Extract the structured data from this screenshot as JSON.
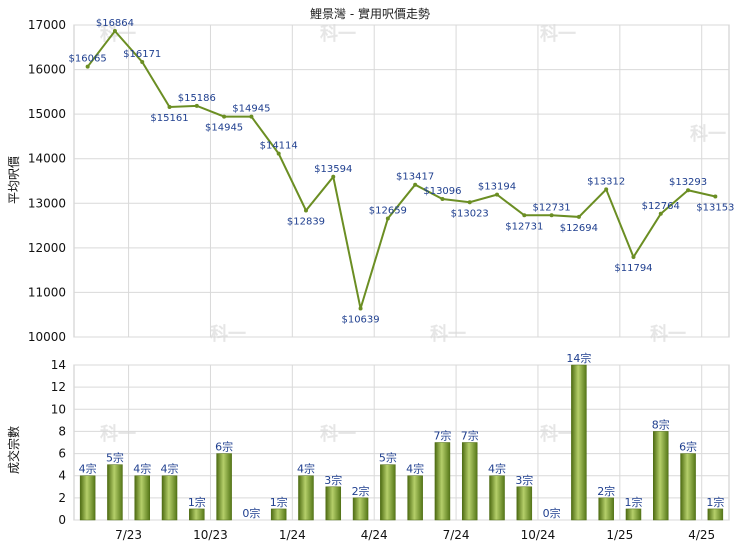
{
  "chart_data": [
    {
      "type": "line",
      "title": "鯉景灣 - 實用呎價走勢",
      "ylabel": "平均呎價",
      "ylim": [
        10000,
        17000
      ],
      "yticks": [
        10000,
        11000,
        12000,
        13000,
        14000,
        15000,
        16000,
        17000
      ],
      "xticks": [
        "7/23",
        "10/23",
        "1/24",
        "4/24",
        "7/24",
        "10/24",
        "1/25",
        "4/25"
      ],
      "grid": true,
      "color": "#6b8e23",
      "series": [
        {
          "values": [
            16065,
            16864,
            16171,
            15161,
            15186,
            14945,
            14945,
            14114,
            12839,
            13594,
            10639,
            12659,
            13417,
            13096,
            13023,
            13194,
            12731,
            12731,
            12694,
            13312,
            11794,
            12764,
            13293,
            13153
          ],
          "labels": [
            "$16065",
            "$16864",
            "$16171",
            "$15161",
            "$15186",
            "$14945",
            "$14945",
            "$14114",
            "$12839",
            "$13594",
            "$10639",
            "$12659",
            "$13417",
            "$13096",
            "$13023",
            "$13194",
            "$12731",
            "$12731",
            "$12694",
            "$13312",
            "$11794",
            "$12764",
            "$13293",
            "$13153"
          ]
        }
      ]
    },
    {
      "type": "bar",
      "ylabel": "成交宗數",
      "ylim": [
        0,
        14
      ],
      "yticks": [
        0,
        2,
        4,
        6,
        8,
        10,
        12,
        14
      ],
      "xticks": [
        "7/23",
        "10/23",
        "1/24",
        "4/24",
        "7/24",
        "10/24",
        "1/25",
        "4/25"
      ],
      "grid": true,
      "color": "#6b8e23",
      "values": [
        4,
        5,
        4,
        4,
        1,
        6,
        0,
        1,
        4,
        3,
        2,
        5,
        4,
        7,
        7,
        4,
        3,
        0,
        14,
        2,
        1,
        8,
        6,
        1
      ],
      "labels": [
        "4宗",
        "5宗",
        "4宗",
        "4宗",
        "1宗",
        "6宗",
        "0宗",
        "1宗",
        "4宗",
        "3宗",
        "2宗",
        "5宗",
        "4宗",
        "7宗",
        "7宗",
        "4宗",
        "3宗",
        "0宗",
        "14宗",
        "2宗",
        "1宗",
        "8宗",
        "6宗",
        "1宗"
      ]
    }
  ],
  "watermark": "科一"
}
